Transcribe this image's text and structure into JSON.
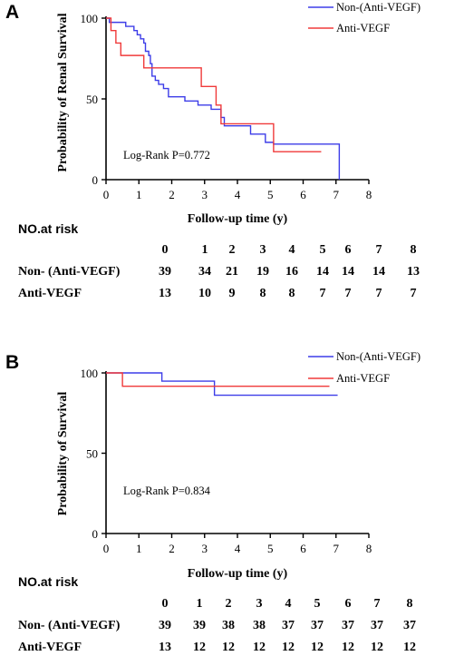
{
  "figure": {
    "colors": {
      "non_anti_vegf": "#3d3de8",
      "anti_vegf": "#f03a3a",
      "axis": "#000000"
    }
  },
  "chart_data": [
    {
      "panel": "A",
      "type": "line",
      "step": true,
      "title": "",
      "xlabel": "Follow-up time (y)",
      "ylabel": "Probability of Renal Survival",
      "xlim": [
        0,
        8
      ],
      "ylim": [
        0,
        100
      ],
      "xticks": [
        "0",
        "1",
        "2",
        "3",
        "4",
        "5",
        "6",
        "7",
        "8"
      ],
      "yticks": [
        "0",
        "50",
        "100"
      ],
      "legend_position": "top-right",
      "annotation": "Log-Rank P=0.772",
      "series": [
        {
          "name": "Non-(Anti-VEGF)",
          "color": "#3d3de8",
          "points": [
            [
              0,
              100
            ],
            [
              0.1,
              97.4
            ],
            [
              0.6,
              94.9
            ],
            [
              0.85,
              92.3
            ],
            [
              0.95,
              89.7
            ],
            [
              1.05,
              87.2
            ],
            [
              1.15,
              84.6
            ],
            [
              1.2,
              79.5
            ],
            [
              1.3,
              76.9
            ],
            [
              1.35,
              71.8
            ],
            [
              1.4,
              64.1
            ],
            [
              1.5,
              61.5
            ],
            [
              1.6,
              59.0
            ],
            [
              1.75,
              56.4
            ],
            [
              1.9,
              51.3
            ],
            [
              2.4,
              48.7
            ],
            [
              2.8,
              46.2
            ],
            [
              3.2,
              43.6
            ],
            [
              3.5,
              38.5
            ],
            [
              3.6,
              33.3
            ],
            [
              4.4,
              28.2
            ],
            [
              4.85,
              23.1
            ],
            [
              5.1,
              22.0
            ],
            [
              7.1,
              22.0
            ],
            [
              7.1,
              0
            ]
          ]
        },
        {
          "name": "Anti-VEGF",
          "color": "#f03a3a",
          "points": [
            [
              0,
              100
            ],
            [
              0.15,
              92.3
            ],
            [
              0.3,
              84.6
            ],
            [
              0.45,
              76.9
            ],
            [
              1.15,
              69.2
            ],
            [
              2.9,
              57.7
            ],
            [
              3.35,
              46.2
            ],
            [
              3.5,
              34.6
            ],
            [
              5.1,
              17.3
            ],
            [
              6.55,
              17.3
            ]
          ]
        }
      ]
    },
    {
      "panel": "B",
      "type": "line",
      "step": true,
      "title": "",
      "xlabel": "Follow-up time (y)",
      "ylabel": "Probability of Survival",
      "xlim": [
        0,
        8
      ],
      "ylim": [
        0,
        100
      ],
      "xticks": [
        "0",
        "1",
        "2",
        "3",
        "4",
        "5",
        "6",
        "7",
        "8"
      ],
      "yticks": [
        "0",
        "50",
        "100"
      ],
      "legend_position": "top-right",
      "annotation": "Log-Rank P=0.834",
      "series": [
        {
          "name": "Non-(Anti-VEGF)",
          "color": "#3d3de8",
          "points": [
            [
              0,
              100
            ],
            [
              1.7,
              94.9
            ],
            [
              3.3,
              86.1
            ],
            [
              7.05,
              86.1
            ]
          ]
        },
        {
          "name": "Anti-VEGF",
          "color": "#f03a3a",
          "points": [
            [
              0,
              100
            ],
            [
              0.5,
              91.7
            ],
            [
              6.8,
              91.7
            ]
          ]
        }
      ]
    }
  ],
  "panels": [
    {
      "letter": "A",
      "legend": [
        "Non-(Anti-VEGF)",
        "Anti-VEGF"
      ],
      "risk_table": {
        "title": "NO.at risk",
        "times": [
          "0",
          "1",
          "2",
          "3",
          "4",
          "5",
          "6",
          "7",
          "8"
        ],
        "rows": [
          {
            "label": "Non- (Anti-VEGF)",
            "values": [
              "39",
              "34",
              "21",
              "19",
              "16",
              "14",
              "14",
              "14",
              "13"
            ]
          },
          {
            "label": "Anti-VEGF",
            "values": [
              "13",
              "10",
              "9",
              "8",
              "8",
              "7",
              "7",
              "7",
              "7"
            ]
          }
        ]
      }
    },
    {
      "letter": "B",
      "legend": [
        "Non-(Anti-VEGF)",
        "Anti-VEGF"
      ],
      "risk_table": {
        "title": "NO.at risk",
        "times": [
          "0",
          "1",
          "2",
          "3",
          "4",
          "5",
          "6",
          "7",
          "8"
        ],
        "rows": [
          {
            "label": "Non- (Anti-VEGF)",
            "values": [
              "39",
              "39",
              "38",
              "38",
              "37",
              "37",
              "37",
              "37",
              "37"
            ]
          },
          {
            "label": "Anti-VEGF",
            "values": [
              "13",
              "12",
              "12",
              "12",
              "12",
              "12",
              "12",
              "12",
              "12"
            ]
          }
        ]
      }
    }
  ]
}
